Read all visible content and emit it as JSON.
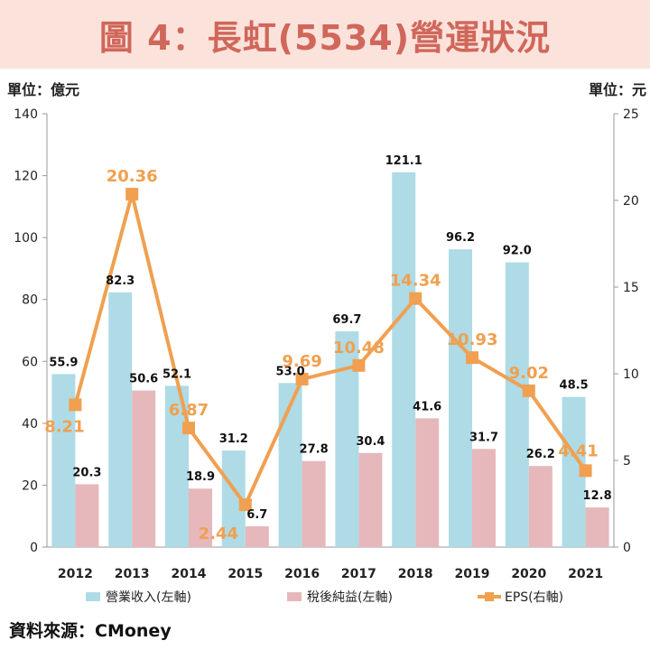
{
  "title": "圖 4：長虹(5534)營運狀況",
  "unit_left": "單位：億元",
  "unit_right": "單位：元",
  "source": "資料來源：CMoney",
  "colors": {
    "revenue": "#aedbe6",
    "net_income": "#e6b8bb",
    "eps": "#f0a050",
    "title": "#d0675a",
    "title_bg": "#fbe3dc"
  },
  "chart_data": {
    "type": "bar",
    "categories": [
      "2012",
      "2013",
      "2014",
      "2015",
      "2016",
      "2017",
      "2018",
      "2019",
      "2020",
      "2021"
    ],
    "series": [
      {
        "name": "營業收入(左軸)",
        "type": "bar",
        "axis": "left",
        "values": [
          55.9,
          82.3,
          52.1,
          31.2,
          53.0,
          69.7,
          121.1,
          96.2,
          92.0,
          48.5
        ],
        "labels": [
          "55.9",
          "82.3",
          "52.1",
          "31.2",
          "53.0",
          "69.7",
          "121.1",
          "96.2",
          "92.0",
          "48.5"
        ]
      },
      {
        "name": "稅後純益(左軸)",
        "type": "bar",
        "axis": "left",
        "values": [
          20.3,
          50.6,
          18.9,
          6.7,
          27.8,
          30.4,
          41.6,
          31.7,
          26.2,
          12.8
        ],
        "labels": [
          "20.3",
          "50.6",
          "18.9",
          "6.7",
          "27.8",
          "30.4",
          "41.6",
          "31.7",
          "26.2",
          "12.8"
        ]
      },
      {
        "name": "EPS(右軸)",
        "type": "line",
        "axis": "right",
        "values": [
          8.21,
          20.36,
          6.87,
          2.44,
          9.69,
          10.48,
          14.34,
          10.93,
          9.02,
          4.41
        ],
        "labels": [
          "8.21",
          "20.36",
          "6.87",
          "2.44",
          "9.69",
          "10.48",
          "14.34",
          "10.93",
          "9.02",
          "4.41"
        ]
      }
    ],
    "ylim_left": [
      0,
      140
    ],
    "yticks_left": [
      "0",
      "20",
      "40",
      "60",
      "80",
      "100",
      "120",
      "140"
    ],
    "ylim_right": [
      0,
      25
    ],
    "yticks_right": [
      "0",
      "5",
      "10",
      "15",
      "20",
      "25"
    ],
    "legend_position": "bottom",
    "grid": false
  }
}
